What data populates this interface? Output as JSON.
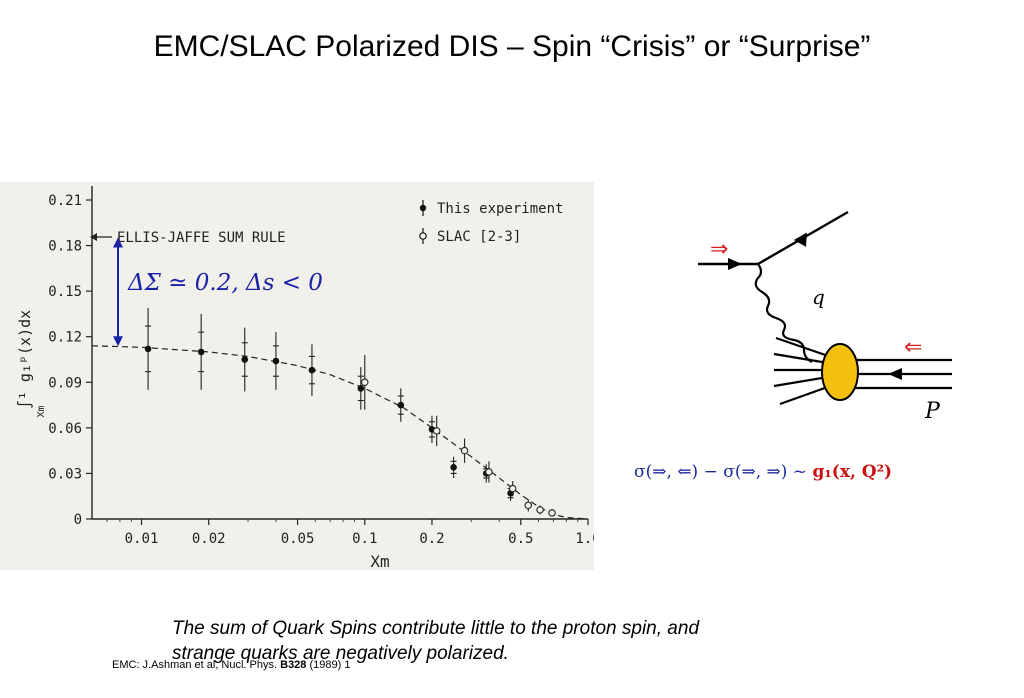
{
  "slide": {
    "title": "EMC/SLAC Polarized DIS – Spin “Crisis” or “Surprise”",
    "formula_delta": "ΔΣ ≃ 0.2, Δs < 0",
    "reference": {
      "prefix": "EMC: J.Ashman et al, Nucl. Phys. ",
      "volume": "B328",
      "suffix": " (1989) 1"
    },
    "cross_section": {
      "lhs": "σ(⇒, ⇐) − σ(⇒, ⇒)  ~  ",
      "rhs": "g₁(x, Q²)"
    },
    "diagram": {
      "photon_label": "q",
      "proton_label": "P",
      "beam_arrow": "⇒",
      "target_arrow": "⇐",
      "colors": {
        "spin_arrows": "#d42020",
        "blob_fill": "#f3c10d",
        "lines": "#000000"
      }
    },
    "conclusion_line1": "The sum of Quark Spins contribute little to the proton spin, and",
    "conclusion_line2": "strange quarks are negatively polarized."
  },
  "chart_data": {
    "type": "scatter",
    "xlabel": "Xm",
    "ylabel": "∫¹ g₁ᵖ(x)dx",
    "ylabel_sub": "Xm",
    "x_scale": "log",
    "xlim": [
      0.006,
      1.0
    ],
    "ylim": [
      0,
      0.21
    ],
    "x_ticks": [
      0.01,
      0.02,
      0.05,
      0.1,
      0.2,
      0.5,
      1.0
    ],
    "x_tick_labels": [
      "0.01",
      "0.02",
      "0.05",
      "0.1",
      "0.2",
      "0.5",
      "1.0"
    ],
    "y_ticks": [
      0,
      0.03,
      0.06,
      0.09,
      0.12,
      0.15,
      0.18,
      0.21
    ],
    "y_tick_labels": [
      "0",
      "0.03",
      "0.06",
      "0.09",
      "0.12",
      "0.15",
      "0.18",
      "0.21"
    ],
    "grid": false,
    "legend_position": "top-right",
    "series": [
      {
        "name": "This experiment",
        "marker": "filled-circle",
        "points": [
          {
            "x": 0.0107,
            "y": 0.112,
            "stat": 0.015,
            "sys": 0.027
          },
          {
            "x": 0.0185,
            "y": 0.11,
            "stat": 0.013,
            "sys": 0.025
          },
          {
            "x": 0.029,
            "y": 0.105,
            "stat": 0.011,
            "sys": 0.021
          },
          {
            "x": 0.04,
            "y": 0.104,
            "stat": 0.01,
            "sys": 0.019
          },
          {
            "x": 0.058,
            "y": 0.098,
            "stat": 0.009,
            "sys": 0.017
          },
          {
            "x": 0.096,
            "y": 0.086,
            "stat": 0.008,
            "sys": 0.014
          },
          {
            "x": 0.145,
            "y": 0.075,
            "stat": 0.006,
            "sys": 0.011
          },
          {
            "x": 0.2,
            "y": 0.059,
            "stat": 0.005,
            "sys": 0.009
          },
          {
            "x": 0.25,
            "y": 0.034,
            "stat": 0.004,
            "sys": 0.007
          },
          {
            "x": 0.35,
            "y": 0.03,
            "stat": 0.003,
            "sys": 0.006
          },
          {
            "x": 0.45,
            "y": 0.017,
            "stat": 0.003,
            "sys": 0.005
          }
        ]
      },
      {
        "name": "SLAC [2-3]",
        "marker": "open-circle",
        "points": [
          {
            "x": 0.1,
            "y": 0.09,
            "err": 0.018
          },
          {
            "x": 0.21,
            "y": 0.058,
            "err": 0.01
          },
          {
            "x": 0.28,
            "y": 0.045,
            "err": 0.008
          },
          {
            "x": 0.36,
            "y": 0.031,
            "err": 0.007
          },
          {
            "x": 0.46,
            "y": 0.02,
            "err": 0.005
          },
          {
            "x": 0.54,
            "y": 0.009,
            "err": 0.004
          },
          {
            "x": 0.61,
            "y": 0.006,
            "err": 0.003
          },
          {
            "x": 0.69,
            "y": 0.004,
            "err": 0.002
          }
        ]
      }
    ],
    "curve": {
      "style": "dashed",
      "points": [
        [
          0.006,
          0.114
        ],
        [
          0.01,
          0.113
        ],
        [
          0.02,
          0.11
        ],
        [
          0.03,
          0.107
        ],
        [
          0.05,
          0.101
        ],
        [
          0.07,
          0.095
        ],
        [
          0.1,
          0.086
        ],
        [
          0.15,
          0.073
        ],
        [
          0.2,
          0.06
        ],
        [
          0.3,
          0.041
        ],
        [
          0.4,
          0.027
        ],
        [
          0.5,
          0.016
        ],
        [
          0.6,
          0.008
        ],
        [
          0.7,
          0.003
        ],
        [
          0.8,
          0.001
        ],
        [
          1.0,
          0.0
        ]
      ]
    },
    "annotation": {
      "text": "ELLIS-JAFFE SUM RULE",
      "y": 0.189
    },
    "bracket": {
      "y_low": 0.115,
      "y_high": 0.184,
      "color": "#1a22a8"
    }
  }
}
